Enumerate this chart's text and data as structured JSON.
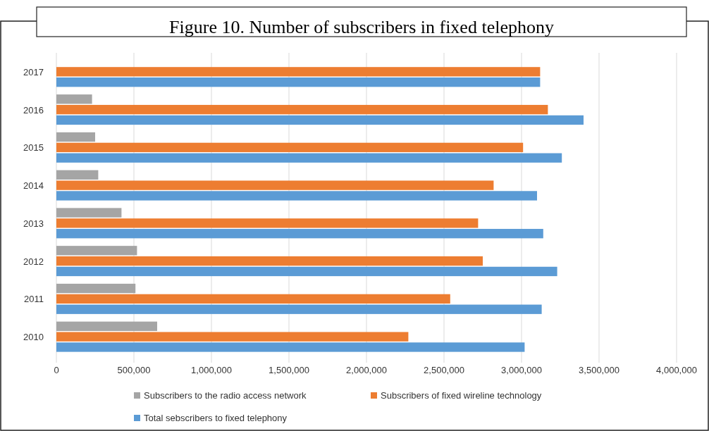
{
  "chart_data": {
    "type": "bar",
    "orientation": "horizontal",
    "title": "Figure 10. Number of subscribers in fixed telephony",
    "categories": [
      "2017",
      "2016",
      "2015",
      "2014",
      "2013",
      "2012",
      "2011",
      "2010"
    ],
    "series": [
      {
        "name": "Subscribers to the radio access network",
        "color": "#a5a5a5",
        "values": [
          null,
          230000,
          250000,
          270000,
          420000,
          520000,
          510000,
          650000
        ]
      },
      {
        "name": "Subscribers of fixed wireline technology",
        "color": "#ed7d31",
        "values": [
          3120000,
          3170000,
          3010000,
          2820000,
          2720000,
          2750000,
          2540000,
          2270000
        ]
      },
      {
        "name": "Total sebscribers to fixed telephony",
        "color": "#5b9bd5",
        "values": [
          3120000,
          3400000,
          3260000,
          3100000,
          3140000,
          3230000,
          3130000,
          3020000
        ]
      }
    ],
    "xlim": [
      0,
      4000000
    ],
    "xticks": [
      {
        "value": 0,
        "label": "0"
      },
      {
        "value": 500000,
        "label": "500,000"
      },
      {
        "value": 1000000,
        "label": "1,000,000"
      },
      {
        "value": 1500000,
        "label": "1,500,000"
      },
      {
        "value": 2000000,
        "label": "2,000,000"
      },
      {
        "value": 2500000,
        "label": "2,500,000"
      },
      {
        "value": 3000000,
        "label": "3,000,000"
      },
      {
        "value": 3500000,
        "label": "3,500,000"
      },
      {
        "value": 4000000,
        "label": "4,000,000"
      }
    ],
    "grid": "x",
    "legend": "bottom"
  }
}
